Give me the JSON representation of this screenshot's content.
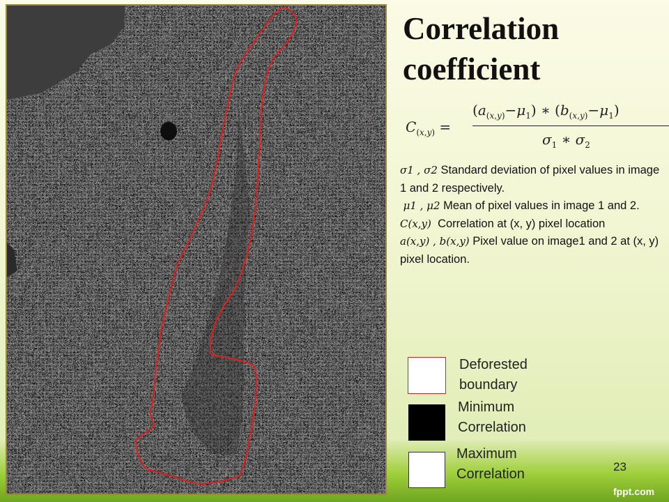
{
  "slide": {
    "title_line1": "Correlation",
    "title_line2": "coefficient",
    "formula": {
      "lhs": "C(x,y) =",
      "numerator": "(a(x,y)−μ1) ∗ (b(x,y)−μ1)",
      "denominator": "σ1 ∗ σ2"
    },
    "definitions": [
      {
        "symbol": "σ1 , σ2",
        "text": "Standard deviation of pixel values in image 1 and 2 respectively."
      },
      {
        "symbol": "μ1 , μ2",
        "text": "Mean of pixel values in image 1 and 2."
      },
      {
        "symbol": "C(x,y)",
        "text": "Correlation at (x, y) pixel location"
      },
      {
        "symbol": "a(x,y) , b(x,y)",
        "text": "Pixel value on image1 and 2 at (x, y) pixel location."
      }
    ],
    "legend": [
      {
        "label": "Deforested boundary",
        "swatch": "red-outline"
      },
      {
        "label": "Minimum Correlation",
        "swatch": "#000000"
      },
      {
        "label": "Maximum Correlation",
        "swatch": "#ffffff"
      }
    ],
    "page_number": "23",
    "brand": "fppt.com"
  },
  "image": {
    "name": "correlation-map",
    "colors": {
      "boundary": "#dd1f1f",
      "no_data": "#3d3d3d",
      "frame": "#9a8a40"
    }
  }
}
